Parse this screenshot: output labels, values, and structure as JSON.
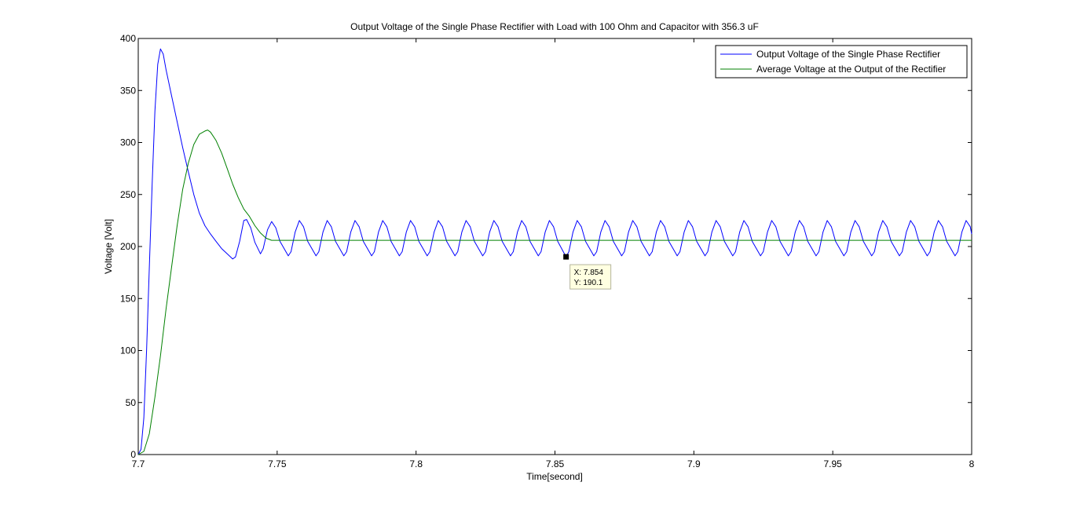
{
  "chart_data": {
    "type": "line",
    "title": "Output Voltage of the Single Phase Rectifier with Load with 100 Ohm and Capacitor with 356.3 uF",
    "xlabel": "Time[second]",
    "ylabel": "Voltage [Volt]",
    "xlim": [
      7.7,
      8.0
    ],
    "ylim": [
      0,
      400
    ],
    "xticks": [
      7.7,
      7.75,
      7.8,
      7.85,
      7.9,
      7.95,
      8.0
    ],
    "xtick_labels": [
      "7.7",
      "7.75",
      "7.8",
      "7.85",
      "7.9",
      "7.95",
      "8"
    ],
    "yticks": [
      0,
      50,
      100,
      150,
      200,
      250,
      300,
      350,
      400
    ],
    "ytick_labels": [
      "0",
      "50",
      "100",
      "150",
      "200",
      "250",
      "300",
      "350",
      "400"
    ],
    "grid": false,
    "legend_position": "top-right",
    "series": [
      {
        "name": "Output Voltage of the Single Phase Rectifier",
        "color": "#0000ff",
        "x": [
          7.7,
          7.701,
          7.702,
          7.703,
          7.704,
          7.705,
          7.706,
          7.707,
          7.708,
          7.709,
          7.71,
          7.712,
          7.714,
          7.716,
          7.718,
          7.72,
          7.722,
          7.724,
          7.726,
          7.728,
          7.73,
          7.732,
          7.734,
          7.735,
          7.7365,
          7.738,
          7.739,
          7.7405,
          7.742,
          7.744,
          7.745,
          7.7465,
          7.748,
          7.7495,
          7.751,
          7.754,
          7.755,
          7.7565,
          7.758,
          7.7595,
          7.761,
          7.764,
          7.765,
          7.7665,
          7.768,
          7.7695,
          7.771,
          7.774,
          7.775,
          7.7765,
          7.778,
          7.7795,
          7.781,
          7.784,
          7.785,
          7.7865,
          7.788,
          7.7895,
          7.791,
          7.794,
          7.795,
          7.7965,
          7.798,
          7.7995,
          7.801,
          7.804,
          7.805,
          7.8065,
          7.808,
          7.8095,
          7.811,
          7.814,
          7.815,
          7.8165,
          7.818,
          7.8195,
          7.821,
          7.824,
          7.825,
          7.8265,
          7.828,
          7.8295,
          7.831,
          7.834,
          7.835,
          7.8365,
          7.838,
          7.8395,
          7.841,
          7.844,
          7.845,
          7.8465,
          7.848,
          7.8495,
          7.851,
          7.854,
          7.855,
          7.8565,
          7.858,
          7.8595,
          7.861,
          7.864,
          7.865,
          7.8665,
          7.868,
          7.8695,
          7.871,
          7.874,
          7.875,
          7.8765,
          7.878,
          7.8795,
          7.881,
          7.884,
          7.885,
          7.8865,
          7.888,
          7.8895,
          7.891,
          7.894,
          7.895,
          7.8965,
          7.898,
          7.8995,
          7.901,
          7.904,
          7.905,
          7.9065,
          7.908,
          7.9095,
          7.911,
          7.914,
          7.915,
          7.9165,
          7.918,
          7.9195,
          7.921,
          7.924,
          7.925,
          7.9265,
          7.928,
          7.9295,
          7.931,
          7.934,
          7.935,
          7.9365,
          7.938,
          7.9395,
          7.941,
          7.944,
          7.945,
          7.9465,
          7.948,
          7.9495,
          7.951,
          7.954,
          7.955,
          7.9565,
          7.958,
          7.9595,
          7.961,
          7.964,
          7.965,
          7.9665,
          7.968,
          7.9695,
          7.971,
          7.974,
          7.975,
          7.9765,
          7.978,
          7.9795,
          7.981,
          7.984,
          7.985,
          7.9865,
          7.988,
          7.9895,
          7.991,
          7.994,
          7.995,
          7.9965,
          7.998,
          7.9995,
          8.0
        ],
        "y": [
          0,
          5,
          35,
          100,
          180,
          260,
          330,
          375,
          390,
          385,
          370,
          345,
          320,
          295,
          272,
          250,
          232,
          220,
          212,
          205,
          198,
          193,
          188,
          190,
          205,
          225,
          226,
          218,
          204,
          193,
          198,
          216,
          224,
          218,
          205,
          191,
          195,
          214,
          225,
          219,
          205,
          191,
          195,
          214,
          225,
          219,
          205,
          191,
          195,
          214,
          225,
          219,
          205,
          191,
          195,
          214,
          225,
          219,
          205,
          191,
          195,
          214,
          225,
          219,
          205,
          191,
          195,
          214,
          225,
          219,
          205,
          191,
          195,
          214,
          225,
          219,
          205,
          191,
          195,
          214,
          225,
          219,
          205,
          191,
          195,
          214,
          225,
          219,
          205,
          191,
          195,
          214,
          225,
          219,
          205,
          190.1,
          195,
          214,
          225,
          219,
          205,
          191,
          195,
          214,
          225,
          219,
          205,
          191,
          195,
          214,
          225,
          219,
          205,
          191,
          195,
          214,
          225,
          219,
          205,
          191,
          195,
          214,
          225,
          219,
          205,
          191,
          195,
          214,
          225,
          219,
          205,
          191,
          195,
          214,
          225,
          219,
          205,
          191,
          195,
          214,
          225,
          219,
          205,
          191,
          195,
          214,
          225,
          219,
          205,
          191,
          195,
          214,
          225,
          219,
          205,
          191,
          195,
          214,
          225,
          219,
          205,
          191,
          195,
          214,
          225,
          219,
          205,
          191,
          195,
          214,
          225,
          219,
          205,
          191,
          195,
          214,
          225,
          219,
          205,
          191,
          195,
          214,
          225,
          219,
          212
        ]
      },
      {
        "name": "Average Voltage at the Output of the Rectifier",
        "color": "#008000",
        "x": [
          7.7,
          7.702,
          7.704,
          7.706,
          7.708,
          7.71,
          7.712,
          7.714,
          7.716,
          7.718,
          7.72,
          7.722,
          7.724,
          7.725,
          7.726,
          7.728,
          7.73,
          7.732,
          7.734,
          7.736,
          7.738,
          7.74,
          7.742,
          7.744,
          7.746,
          7.748,
          7.75,
          7.8,
          7.85,
          7.9,
          7.95,
          8.0
        ],
        "y": [
          0,
          3,
          20,
          55,
          95,
          140,
          180,
          220,
          255,
          280,
          298,
          308,
          311,
          312,
          310,
          302,
          290,
          275,
          260,
          247,
          236,
          229,
          220,
          213,
          208,
          206,
          206,
          206,
          206,
          206,
          206,
          206
        ]
      }
    ],
    "datatip": {
      "x": 7.854,
      "y": 190.1,
      "x_text": "X: 7.854",
      "y_text": "Y: 190.1"
    }
  }
}
